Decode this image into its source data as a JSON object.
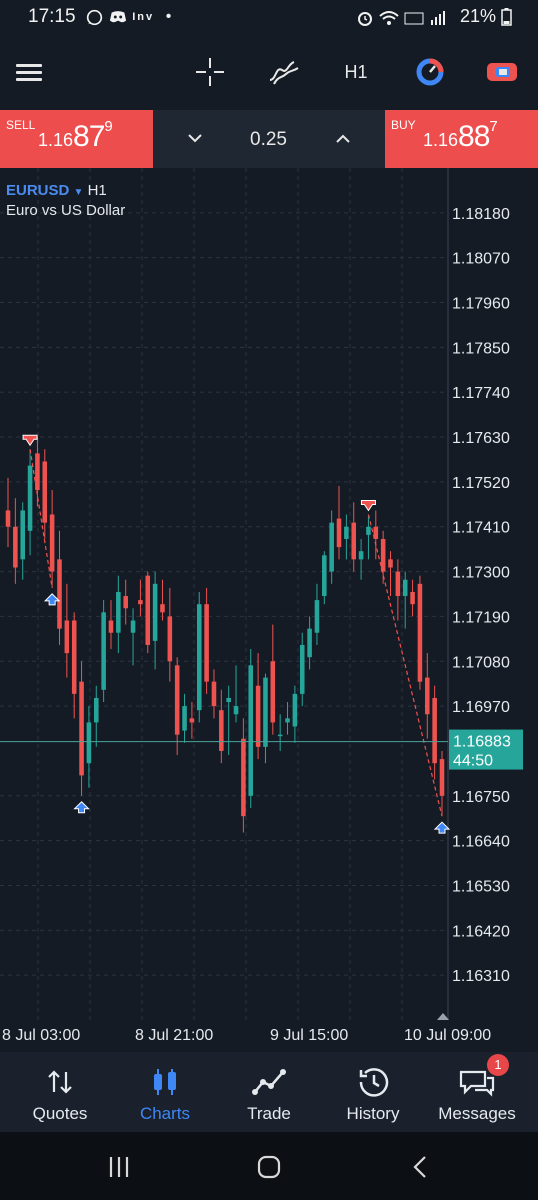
{
  "status_bar": {
    "time": "17:15",
    "left_icons": [
      "whatsapp-icon",
      "discord-icon",
      "inv-icon",
      "dot-icon"
    ],
    "inv_label": "Inv",
    "dot": "•",
    "right_icons": [
      "alarm-icon",
      "wifi-icon",
      "lte-icon",
      "signal-icon"
    ],
    "battery": "21%"
  },
  "toolbar": {
    "timeframe": "H1",
    "icons": [
      "menu-icon",
      "crosshair-icon",
      "indicators-icon",
      "timeframe",
      "oneclick-icon",
      "trade-toggle-icon"
    ]
  },
  "trade_bar": {
    "sell_label": "SELL",
    "sell_price_prefix": "1.16",
    "sell_price_big": "87",
    "sell_price_sup": "9",
    "buy_label": "BUY",
    "buy_price_prefix": "1.16",
    "buy_price_big": "88",
    "buy_price_sup": "7",
    "lot": "0.25"
  },
  "chart_header": {
    "symbol": "EURUSD",
    "dropdown_arrow": "▼",
    "timeframe": "H1",
    "description": "Euro vs US Dollar"
  },
  "chart_data": {
    "type": "candlestick",
    "symbol": "EURUSD",
    "timeframe": "H1",
    "ylim": [
      1.162,
      1.1829
    ],
    "y_ticks": [
      "1.18180",
      "1.18070",
      "1.17960",
      "1.17850",
      "1.17740",
      "1.17630",
      "1.17520",
      "1.17410",
      "1.17300",
      "1.17190",
      "1.17080",
      "1.16970",
      "1.16750",
      "1.16640",
      "1.16530",
      "1.16420",
      "1.16310"
    ],
    "x_ticks": [
      "8 Jul 03:00",
      "8 Jul 21:00",
      "9 Jul 15:00",
      "10 Jul 09:00"
    ],
    "current_price": "1.16883",
    "countdown": "44:50",
    "current_price_value": 1.16883,
    "colors": {
      "bull": "#26a69a",
      "bear": "#ef5350",
      "grid": "#2a3340",
      "price_line": "#4aa39a",
      "price_tag": "#26a69a",
      "signal_line": "#ef5350",
      "arrow_up": "#3f87f5",
      "arrow_down": "#ef5350"
    },
    "candles": [
      [
        1.1745,
        1.1753,
        1.1736,
        1.1741
      ],
      [
        1.1741,
        1.1748,
        1.1727,
        1.1731
      ],
      [
        1.1733,
        1.1747,
        1.1728,
        1.1745
      ],
      [
        1.174,
        1.176,
        1.1734,
        1.1756
      ],
      [
        1.1759,
        1.1763,
        1.1746,
        1.175
      ],
      [
        1.1757,
        1.176,
        1.1738,
        1.1742
      ],
      [
        1.1744,
        1.175,
        1.1726,
        1.173
      ],
      [
        1.1733,
        1.174,
        1.1712,
        1.1716
      ],
      [
        1.1718,
        1.1727,
        1.1704,
        1.171
      ],
      [
        1.1718,
        1.172,
        1.1694,
        1.17
      ],
      [
        1.1703,
        1.1708,
        1.1675,
        1.168
      ],
      [
        1.1683,
        1.1697,
        1.1677,
        1.1693
      ],
      [
        1.1693,
        1.1702,
        1.1687,
        1.1699
      ],
      [
        1.1701,
        1.1723,
        1.1698,
        1.172
      ],
      [
        1.1718,
        1.1723,
        1.1711,
        1.1715
      ],
      [
        1.1715,
        1.1729,
        1.171,
        1.1725
      ],
      [
        1.1724,
        1.1728,
        1.1717,
        1.1721
      ],
      [
        1.1715,
        1.1721,
        1.1707,
        1.1718
      ],
      [
        1.1723,
        1.1728,
        1.1719,
        1.1722
      ],
      [
        1.1729,
        1.173,
        1.171,
        1.1712
      ],
      [
        1.1713,
        1.173,
        1.1706,
        1.1727
      ],
      [
        1.1722,
        1.1728,
        1.1718,
        1.172
      ],
      [
        1.1719,
        1.1726,
        1.1703,
        1.1708
      ],
      [
        1.1707,
        1.1709,
        1.1685,
        1.169
      ],
      [
        1.1691,
        1.17,
        1.1688,
        1.1697
      ],
      [
        1.1694,
        1.1698,
        1.1689,
        1.1693
      ],
      [
        1.1696,
        1.1725,
        1.1693,
        1.1722
      ],
      [
        1.1722,
        1.1726,
        1.17,
        1.1703
      ],
      [
        1.1703,
        1.1706,
        1.1694,
        1.1697
      ],
      [
        1.1696,
        1.1701,
        1.1683,
        1.1686
      ],
      [
        1.1698,
        1.1702,
        1.1685,
        1.1699
      ],
      [
        1.1695,
        1.1707,
        1.1693,
        1.1697
      ],
      [
        1.1689,
        1.1694,
        1.1666,
        1.167
      ],
      [
        1.1675,
        1.1711,
        1.1672,
        1.1707
      ],
      [
        1.1702,
        1.171,
        1.1684,
        1.1687
      ],
      [
        1.1687,
        1.1705,
        1.1683,
        1.1704
      ],
      [
        1.1708,
        1.1717,
        1.169,
        1.1693
      ],
      [
        1.169,
        1.1695,
        1.1686,
        1.169
      ],
      [
        1.1693,
        1.1698,
        1.169,
        1.1694
      ],
      [
        1.1692,
        1.1702,
        1.1688,
        1.17
      ],
      [
        1.17,
        1.1715,
        1.1697,
        1.1712
      ],
      [
        1.1709,
        1.1719,
        1.1706,
        1.1716
      ],
      [
        1.1715,
        1.1727,
        1.1712,
        1.1723
      ],
      [
        1.1724,
        1.1735,
        1.1722,
        1.1734
      ],
      [
        1.173,
        1.1745,
        1.1727,
        1.1742
      ],
      [
        1.1743,
        1.1751,
        1.1733,
        1.1736
      ],
      [
        1.1738,
        1.1744,
        1.1733,
        1.1741
      ],
      [
        1.1742,
        1.1747,
        1.173,
        1.1733
      ],
      [
        1.1733,
        1.1738,
        1.1728,
        1.1735
      ],
      [
        1.1739,
        1.1744,
        1.1733,
        1.1741
      ],
      [
        1.1741,
        1.1745,
        1.1733,
        1.1738
      ],
      [
        1.1738,
        1.174,
        1.1727,
        1.173
      ],
      [
        1.1733,
        1.1735,
        1.1724,
        1.1731
      ],
      [
        1.173,
        1.1733,
        1.1718,
        1.1724
      ],
      [
        1.1724,
        1.173,
        1.1716,
        1.1728
      ],
      [
        1.1725,
        1.1728,
        1.1719,
        1.1722
      ],
      [
        1.1727,
        1.1729,
        1.1701,
        1.1703
      ],
      [
        1.1704,
        1.171,
        1.1689,
        1.1695
      ],
      [
        1.1699,
        1.1702,
        1.1679,
        1.1683
      ],
      [
        1.1684,
        1.1686,
        1.167,
        1.1675
      ]
    ],
    "signals": [
      {
        "index": 3,
        "type": "sell"
      },
      {
        "index": 6,
        "type": "buy"
      },
      {
        "index": 10,
        "type": "buy"
      },
      {
        "index": 49,
        "type": "sell"
      },
      {
        "index": 59,
        "type": "buy"
      }
    ]
  },
  "bottom_nav": {
    "items": [
      {
        "label": "Quotes",
        "icon": "quotes-icon"
      },
      {
        "label": "Charts",
        "icon": "charts-icon"
      },
      {
        "label": "Trade",
        "icon": "trade-icon"
      },
      {
        "label": "History",
        "icon": "history-icon"
      },
      {
        "label": "Messages",
        "icon": "messages-icon"
      }
    ],
    "active": "Charts",
    "messages_badge": "1"
  },
  "system_nav": {
    "icons": [
      "recents-icon",
      "home-icon",
      "back-icon"
    ]
  }
}
